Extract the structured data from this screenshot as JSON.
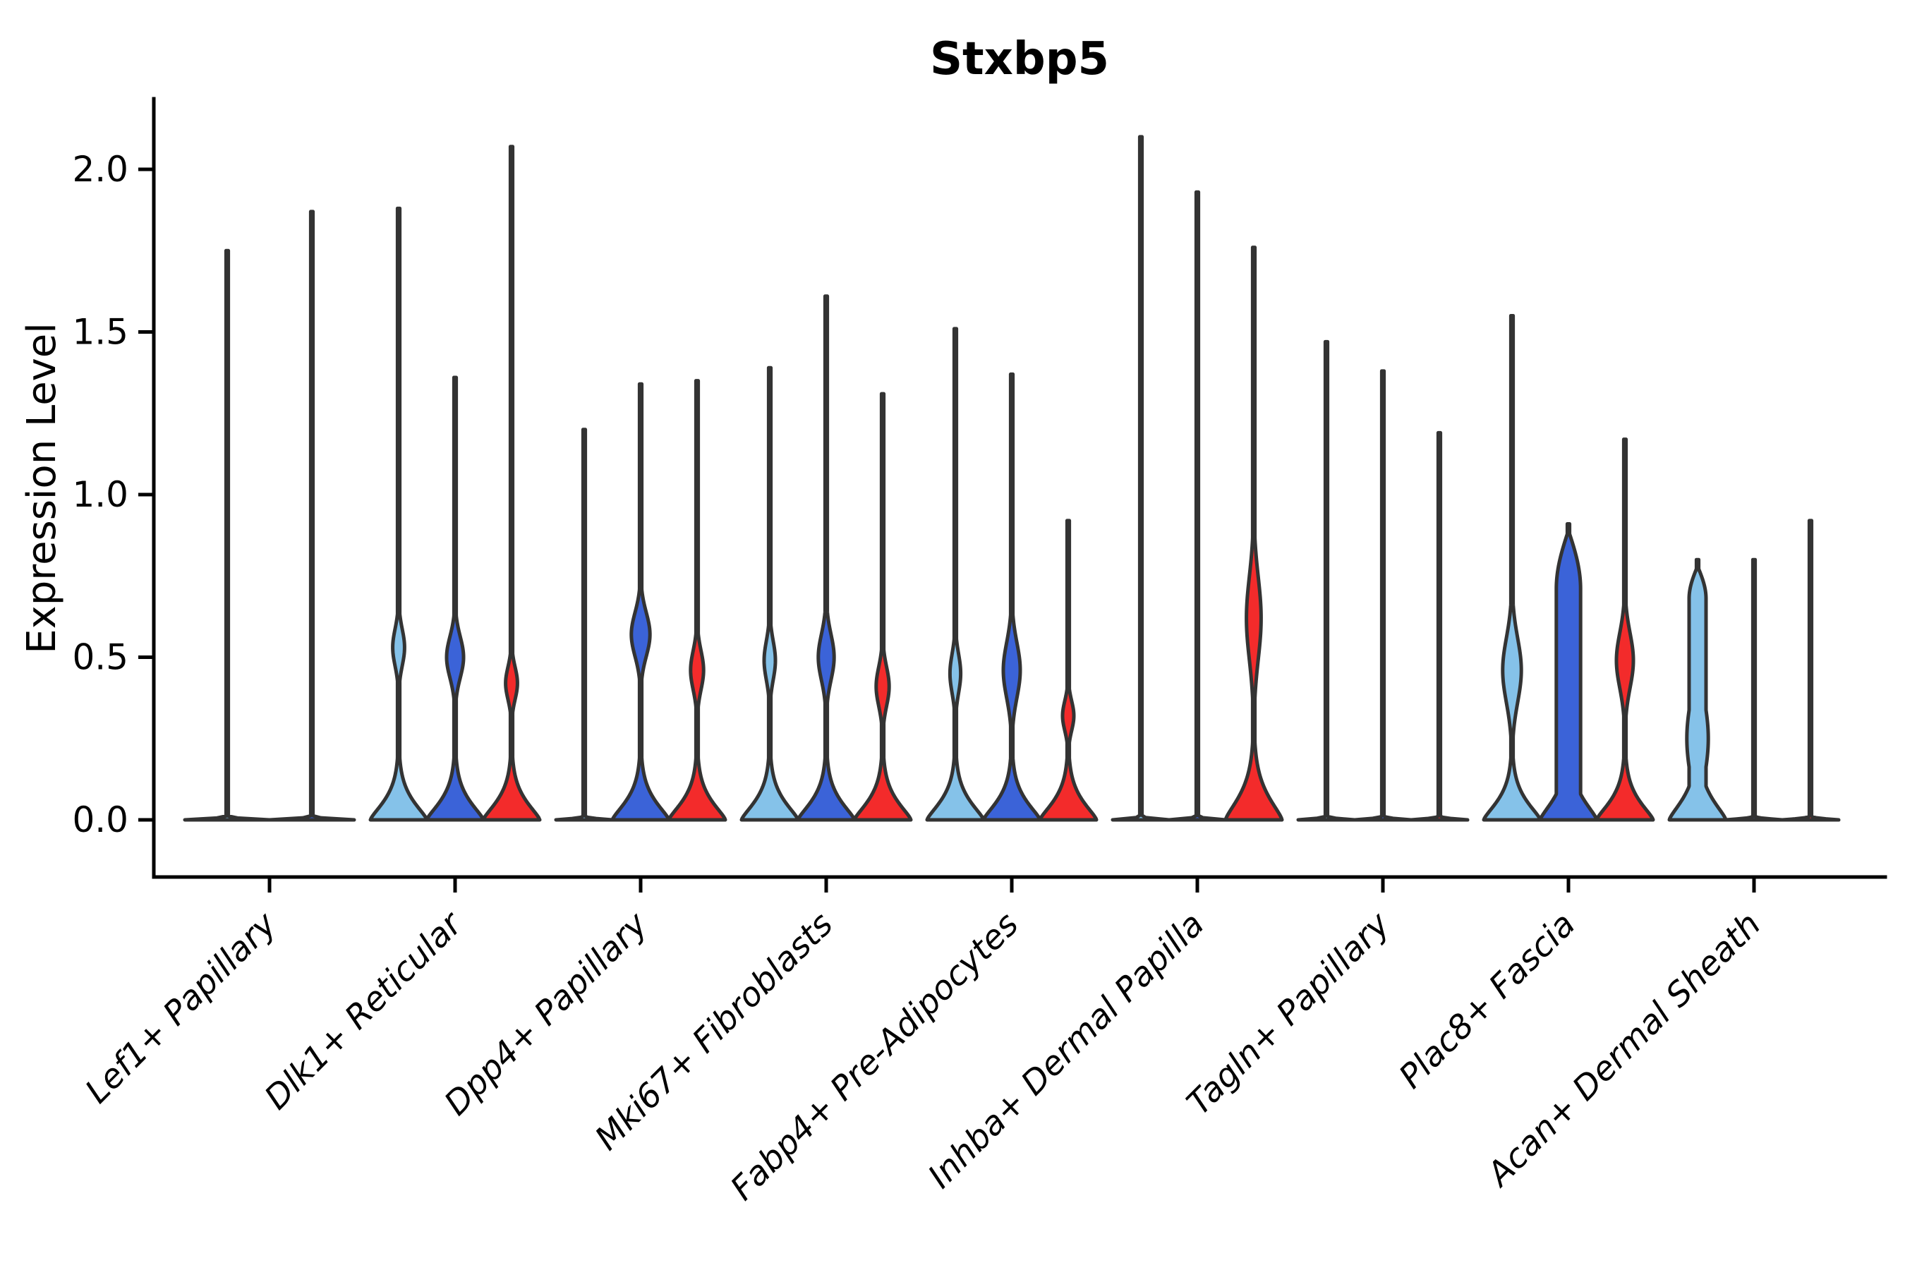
{
  "chart_data": {
    "type": "violin",
    "title": "Stxbp5",
    "xlabel": "",
    "ylabel": "Expression Level",
    "ylim": [
      -0.18,
      2.22
    ],
    "yticks": [
      0.0,
      0.5,
      1.0,
      1.5,
      2.0
    ],
    "grid": false,
    "legend": "none",
    "x_tick_style": "italic, rotated 45deg",
    "outline_color": "#333333",
    "split_palette": {
      "split1": "#85C2E9",
      "split2": "#3B63D8",
      "split3": "#F32B2B"
    },
    "categories": [
      "Lef1+ Papillary",
      "Dlk1+ Reticular",
      "Dpp4+ Papillary",
      "Mki67+ Fibroblasts",
      "Fabp4+ Pre-Adipocytes",
      "Inhba+ Dermal Papilla",
      "Tagln+ Papillary",
      "Plac8+ Fascia",
      "Acan+ Dermal Sheath"
    ],
    "groups": [
      {
        "category": "Lef1+ Papillary",
        "violins": [
          {
            "split": "split1",
            "max": 1.75,
            "body": "flat"
          },
          {
            "split": "split2",
            "max": 1.87,
            "body": "flat"
          }
        ]
      },
      {
        "category": "Dlk1+ Reticular",
        "violins": [
          {
            "split": "split1",
            "max": 1.88,
            "body": "bulge",
            "bulge_center": 0.53,
            "bulge_sigma": 0.08,
            "bulge_rel_width": 0.21
          },
          {
            "split": "split2",
            "max": 1.36,
            "body": "bulge",
            "bulge_center": 0.5,
            "bulge_sigma": 0.09,
            "bulge_rel_width": 0.3
          },
          {
            "split": "split3",
            "max": 2.07,
            "body": "bulge",
            "bulge_center": 0.42,
            "bulge_sigma": 0.07,
            "bulge_rel_width": 0.21
          }
        ]
      },
      {
        "category": "Dpp4+ Papillary",
        "violins": [
          {
            "split": "split1",
            "max": 1.2,
            "body": "flat"
          },
          {
            "split": "split2",
            "max": 1.34,
            "body": "bulge",
            "bulge_center": 0.57,
            "bulge_sigma": 0.095,
            "bulge_rel_width": 0.33
          },
          {
            "split": "split3",
            "max": 1.35,
            "body": "bulge",
            "bulge_center": 0.46,
            "bulge_sigma": 0.085,
            "bulge_rel_width": 0.23
          }
        ]
      },
      {
        "category": "Mki67+ Fibroblasts",
        "violins": [
          {
            "split": "split1",
            "max": 1.39,
            "body": "bulge",
            "bulge_center": 0.49,
            "bulge_sigma": 0.085,
            "bulge_rel_width": 0.2
          },
          {
            "split": "split2",
            "max": 1.61,
            "body": "bulge",
            "bulge_center": 0.5,
            "bulge_sigma": 0.1,
            "bulge_rel_width": 0.28
          },
          {
            "split": "split3",
            "max": 1.31,
            "body": "bulge",
            "bulge_center": 0.41,
            "bulge_sigma": 0.085,
            "bulge_rel_width": 0.23
          }
        ]
      },
      {
        "category": "Fabp4+ Pre-Adipocytes",
        "violins": [
          {
            "split": "split1",
            "max": 1.51,
            "body": "bulge",
            "bulge_center": 0.45,
            "bulge_sigma": 0.085,
            "bulge_rel_width": 0.19
          },
          {
            "split": "split2",
            "max": 1.37,
            "body": "bulge",
            "bulge_center": 0.46,
            "bulge_sigma": 0.12,
            "bulge_rel_width": 0.3
          },
          {
            "split": "split3",
            "max": 0.92,
            "body": "bulge",
            "bulge_center": 0.32,
            "bulge_sigma": 0.065,
            "bulge_rel_width": 0.2
          }
        ]
      },
      {
        "category": "Inhba+ Dermal Papilla",
        "violins": [
          {
            "split": "split1",
            "max": 2.1,
            "body": "flat"
          },
          {
            "split": "split2",
            "max": 1.93,
            "body": "flat"
          },
          {
            "split": "split3",
            "max": 1.76,
            "body": "bulge",
            "bulge_center": 0.62,
            "bulge_sigma": 0.18,
            "bulge_rel_width": 0.26,
            "mound_h": 0.1
          }
        ]
      },
      {
        "category": "Tagln+ Papillary",
        "violins": [
          {
            "split": "split1",
            "max": 1.47,
            "body": "flat"
          },
          {
            "split": "split2",
            "max": 1.38,
            "body": "flat"
          },
          {
            "split": "split3",
            "max": 1.19,
            "body": "flat"
          }
        ]
      },
      {
        "category": "Plac8+ Fascia",
        "violins": [
          {
            "split": "split1",
            "max": 1.55,
            "body": "bulge",
            "bulge_center": 0.46,
            "bulge_sigma": 0.14,
            "bulge_rel_width": 0.33
          },
          {
            "split": "split2",
            "max": 0.91,
            "body": "column",
            "column_top": 0.89,
            "column_rel_width": 0.43,
            "column_round": 0.18,
            "mound_h": 0.09
          },
          {
            "split": "split3",
            "max": 1.17,
            "body": "bulge",
            "bulge_center": 0.49,
            "bulge_sigma": 0.12,
            "bulge_rel_width": 0.3
          }
        ]
      },
      {
        "category": "Acan+ Dermal Sheath",
        "violins": [
          {
            "split": "split1",
            "max": 0.8,
            "body": "column",
            "column_top": 0.78,
            "column_rel_width": 0.3,
            "column_round": 0.1,
            "bulge_center": 0.25,
            "bulge_sigma": 0.18,
            "bulge_rel_width": 0.38,
            "mound_h": 0.09
          },
          {
            "split": "split2",
            "max": 0.8,
            "body": "flat"
          },
          {
            "split": "split3",
            "max": 0.92,
            "body": "flat"
          }
        ]
      }
    ]
  }
}
